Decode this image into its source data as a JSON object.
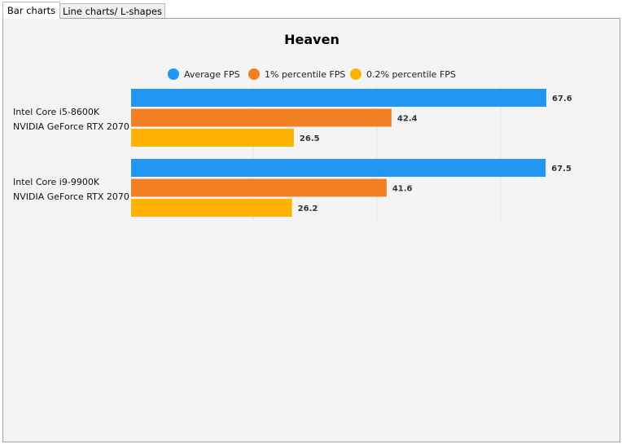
{
  "tabs": [
    {
      "label": "Bar charts",
      "active": true
    },
    {
      "label": "Line charts/ L-shapes",
      "active": false
    }
  ],
  "chart_data": {
    "type": "bar",
    "orientation": "horizontal",
    "title": "Heaven",
    "categories": [
      [
        "Intel Core i5-8600K",
        "NVIDIA GeForce RTX 2070"
      ],
      [
        "Intel Core i9-9900K",
        "NVIDIA GeForce RTX 2070"
      ]
    ],
    "series": [
      {
        "name": "Average FPS",
        "color": "#2196f3",
        "values": [
          67.6,
          67.5
        ]
      },
      {
        "name": "1% percentile FPS",
        "color": "#f37f22",
        "values": [
          42.4,
          41.6
        ]
      },
      {
        "name": "0.2% percentile FPS",
        "color": "#ffb300",
        "values": [
          26.5,
          26.2
        ]
      }
    ],
    "xlim": [
      0,
      67.6
    ],
    "legend_position": "top",
    "grid": true
  }
}
